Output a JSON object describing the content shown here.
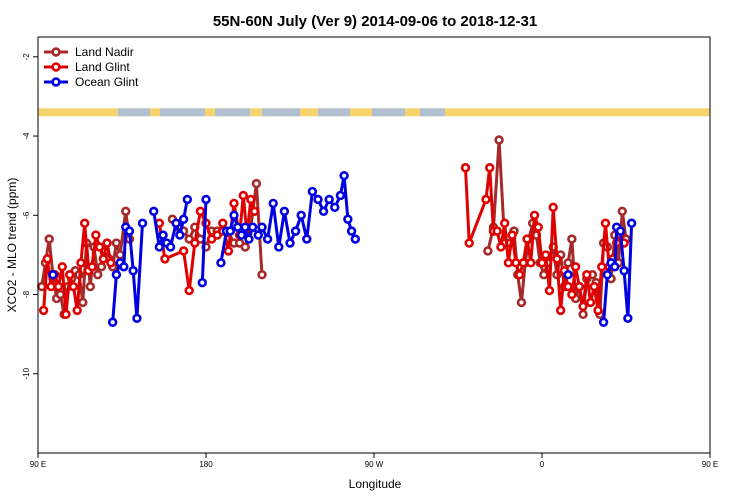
{
  "chart_data": {
    "type": "line",
    "title": "55N-60N July (Ver 9)   2014-09-06 to 2018-12-31",
    "xlabel": "Longitude",
    "ylabel": "XCO2 - MLO trend (ppm)",
    "xlim": [
      90,
      450
    ],
    "ylim": [
      -12,
      -1.5
    ],
    "x_ticks": [
      {
        "value": 90,
        "label": "90 E"
      },
      {
        "value": 180,
        "label": "180"
      },
      {
        "value": 270,
        "label": "90 W"
      },
      {
        "value": 360,
        "label": "0"
      },
      {
        "value": 450,
        "label": "90 E"
      },
      {
        "value": 540,
        "label": "180"
      }
    ],
    "y_ticks": [
      {
        "value": -2,
        "label": "-2"
      },
      {
        "value": -4,
        "label": "-4"
      },
      {
        "value": -6,
        "label": "-6"
      },
      {
        "value": -8,
        "label": "-8"
      },
      {
        "value": -10,
        "label": "-10"
      }
    ],
    "legend_position": "top-left",
    "grid": false,
    "land_strip": {
      "y_range": [
        -3.5,
        -3.3
      ],
      "land_color": "#f7d36e",
      "ocean_color": "#a8bedc"
    },
    "series": [
      {
        "name": "Land Nadir",
        "color": "#a52a2a",
        "segments": [
          [
            [
              92,
              -7.8
            ],
            [
              94,
              -7.2
            ],
            [
              96,
              -6.6
            ],
            [
              98,
              -7.5
            ],
            [
              100,
              -8.1
            ],
            [
              102,
              -8.0
            ],
            [
              104,
              -8.5
            ],
            [
              106,
              -7.8
            ],
            [
              108,
              -7.6
            ],
            [
              110,
              -7.4
            ],
            [
              112,
              -7.5
            ],
            [
              114,
              -8.2
            ],
            [
              116,
              -6.7
            ],
            [
              118,
              -7.8
            ],
            [
              120,
              -6.8
            ],
            [
              122,
              -7.5
            ],
            [
              124,
              -7.3
            ],
            [
              126,
              -6.9
            ],
            [
              128,
              -7.1
            ],
            [
              130,
              -7.3
            ],
            [
              132,
              -6.7
            ],
            [
              134,
              -7.0
            ],
            [
              137,
              -5.9
            ],
            [
              139,
              -6.6
            ]
          ],
          [
            [
              162,
              -6.1
            ],
            [
              165,
              -6.3
            ],
            [
              168,
              -6.4
            ],
            [
              171,
              -6.6
            ],
            [
              174,
              -6.3
            ],
            [
              177,
              -6.6
            ],
            [
              180,
              -6.8
            ],
            [
              183,
              -6.4
            ],
            [
              186,
              -6.4
            ],
            [
              189,
              -6.4
            ],
            [
              192,
              -6.6
            ],
            [
              195,
              -6.7
            ],
            [
              198,
              -6.7
            ],
            [
              201,
              -6.8
            ],
            [
              204,
              -6.3
            ],
            [
              207,
              -5.2
            ],
            [
              210,
              -7.5
            ]
          ],
          [
            [
              331,
              -6.9
            ],
            [
              334,
              -6.3
            ],
            [
              337,
              -4.1
            ],
            [
              340,
              -6.7
            ],
            [
              343,
              -6.7
            ],
            [
              345,
              -6.4
            ],
            [
              347,
              -7.5
            ],
            [
              349,
              -8.2
            ],
            [
              351,
              -7.2
            ],
            [
              353,
              -6.6
            ],
            [
              355,
              -6.2
            ],
            [
              357,
              -6.5
            ],
            [
              359,
              -7.2
            ],
            [
              361,
              -7.5
            ],
            [
              363,
              -7.2
            ],
            [
              366,
              -6.8
            ],
            [
              368,
              -7.5
            ],
            [
              370,
              -7.0
            ],
            [
              372,
              -7.8
            ],
            [
              374,
              -7.2
            ],
            [
              376,
              -6.6
            ],
            [
              378,
              -8.1
            ],
            [
              380,
              -7.8
            ],
            [
              382,
              -8.5
            ],
            [
              384,
              -7.6
            ],
            [
              387,
              -7.5
            ],
            [
              389,
              -7.7
            ],
            [
              391,
              -8.5
            ],
            [
              393,
              -6.7
            ],
            [
              395,
              -6.8
            ],
            [
              397,
              -7.6
            ],
            [
              399,
              -6.5
            ],
            [
              401,
              -7.2
            ],
            [
              403,
              -5.9
            ],
            [
              405,
              -6.6
            ]
          ]
        ]
      },
      {
        "name": "Land Glint",
        "color": "#e00000",
        "segments": [
          [
            [
              93,
              -8.4
            ],
            [
              95,
              -7.1
            ],
            [
              97,
              -7.8
            ],
            [
              99,
              -7.5
            ],
            [
              101,
              -7.8
            ],
            [
              103,
              -7.3
            ],
            [
              105,
              -8.5
            ],
            [
              107,
              -7.5
            ],
            [
              109,
              -7.8
            ],
            [
              111,
              -8.4
            ],
            [
              113,
              -7.2
            ],
            [
              115,
              -6.2
            ],
            [
              117,
              -7.4
            ],
            [
              119,
              -7.3
            ],
            [
              121,
              -6.5
            ],
            [
              123,
              -6.8
            ],
            [
              125,
              -7.1
            ],
            [
              127,
              -6.7
            ],
            [
              129,
              -7.2
            ]
          ],
          [
            [
              155,
              -6.2
            ],
            [
              158,
              -7.1
            ],
            [
              168,
              -6.9
            ],
            [
              171,
              -7.9
            ],
            [
              174,
              -6.7
            ],
            [
              177,
              -5.9
            ],
            [
              180,
              -6.2
            ],
            [
              183,
              -6.6
            ],
            [
              186,
              -6.5
            ],
            [
              189,
              -6.2
            ],
            [
              192,
              -6.9
            ],
            [
              195,
              -5.7
            ],
            [
              198,
              -6.5
            ],
            [
              200,
              -5.5
            ],
            [
              202,
              -6.5
            ],
            [
              204,
              -5.6
            ],
            [
              206,
              -5.9
            ]
          ],
          [
            [
              319,
              -4.8
            ],
            [
              321,
              -6.7
            ],
            [
              330,
              -5.6
            ],
            [
              332,
              -4.8
            ],
            [
              334,
              -6.4
            ],
            [
              336,
              -6.4
            ],
            [
              338,
              -6.8
            ],
            [
              340,
              -6.2
            ],
            [
              342,
              -7.2
            ],
            [
              344,
              -6.5
            ],
            [
              346,
              -7.2
            ],
            [
              348,
              -7.5
            ],
            [
              350,
              -7.2
            ],
            [
              352,
              -6.6
            ],
            [
              354,
              -7.2
            ],
            [
              356,
              -6.0
            ],
            [
              358,
              -6.3
            ],
            [
              360,
              -7.2
            ],
            [
              362,
              -7.0
            ],
            [
              364,
              -7.9
            ],
            [
              366,
              -5.8
            ],
            [
              368,
              -7.1
            ],
            [
              370,
              -8.4
            ],
            [
              372,
              -7.4
            ],
            [
              374,
              -7.8
            ],
            [
              376,
              -8.0
            ],
            [
              378,
              -7.3
            ],
            [
              380,
              -7.8
            ],
            [
              382,
              -8.3
            ],
            [
              384,
              -7.5
            ],
            [
              386,
              -8.2
            ],
            [
              388,
              -7.8
            ],
            [
              390,
              -8.4
            ],
            [
              392,
              -7.3
            ],
            [
              394,
              -6.2
            ],
            [
              396,
              -7.3
            ],
            [
              398,
              -7.1
            ],
            [
              400,
              -6.7
            ],
            [
              402,
              -6.5
            ],
            [
              404,
              -6.7
            ]
          ]
        ]
      },
      {
        "name": "Ocean Glint",
        "color": "#0000e0",
        "segments": [
          [
            [
              98,
              -7.5
            ]
          ],
          [
            [
              130,
              -8.7
            ],
            [
              132,
              -7.5
            ],
            [
              134,
              -7.2
            ],
            [
              136,
              -7.3
            ],
            [
              137,
              -6.3
            ],
            [
              139,
              -6.4
            ],
            [
              141,
              -7.4
            ],
            [
              143,
              -8.6
            ],
            [
              146,
              -6.2
            ]
          ],
          [
            [
              152,
              -5.9
            ],
            [
              155,
              -6.8
            ],
            [
              157,
              -6.5
            ],
            [
              159,
              -6.7
            ],
            [
              161,
              -6.8
            ],
            [
              164,
              -6.2
            ],
            [
              166,
              -6.5
            ],
            [
              168,
              -6.1
            ],
            [
              170,
              -5.6
            ]
          ],
          [
            [
              178,
              -7.7
            ],
            [
              180,
              -5.6
            ]
          ],
          [
            [
              188,
              -7.2
            ],
            [
              191,
              -6.4
            ],
            [
              193,
              -6.4
            ],
            [
              195,
              -6.0
            ],
            [
              197,
              -6.3
            ],
            [
              199,
              -6.5
            ],
            [
              201,
              -6.3
            ],
            [
              203,
              -6.6
            ],
            [
              205,
              -6.3
            ],
            [
              208,
              -6.5
            ],
            [
              210,
              -6.3
            ],
            [
              213,
              -6.6
            ],
            [
              216,
              -5.7
            ],
            [
              219,
              -6.8
            ],
            [
              222,
              -5.9
            ],
            [
              225,
              -6.7
            ],
            [
              228,
              -6.4
            ],
            [
              231,
              -6.0
            ],
            [
              234,
              -6.6
            ],
            [
              237,
              -5.4
            ],
            [
              240,
              -5.6
            ],
            [
              243,
              -5.9
            ],
            [
              246,
              -5.6
            ],
            [
              249,
              -5.8
            ],
            [
              252,
              -5.5
            ],
            [
              254,
              -5.0
            ],
            [
              256,
              -6.1
            ],
            [
              258,
              -6.4
            ],
            [
              260,
              -6.6
            ]
          ],
          [
            [
              374,
              -7.5
            ]
          ],
          [
            [
              393,
              -8.7
            ],
            [
              395,
              -7.5
            ],
            [
              397,
              -7.2
            ],
            [
              399,
              -7.3
            ],
            [
              400,
              -6.3
            ],
            [
              402,
              -6.4
            ],
            [
              404,
              -7.4
            ],
            [
              406,
              -8.6
            ],
            [
              408,
              -6.2
            ]
          ]
        ]
      }
    ]
  }
}
